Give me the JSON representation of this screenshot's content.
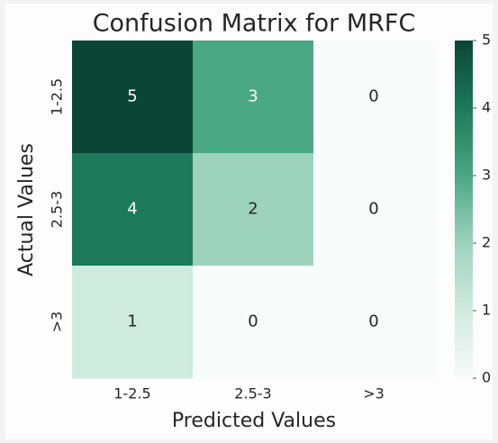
{
  "chart_data": {
    "type": "heatmap",
    "title": "Confusion Matrix for MRFC",
    "x_label": "Predicted Values",
    "y_label": "Actual Values",
    "x_categories": [
      "1-2.5",
      "2.5-3",
      ">3"
    ],
    "y_categories": [
      "1-2.5",
      "2.5-3",
      ">3"
    ],
    "values": [
      [
        5,
        3,
        0
      ],
      [
        4,
        2,
        0
      ],
      [
        1,
        0,
        0
      ]
    ],
    "zlim": [
      0,
      5
    ],
    "zticks": [
      0,
      1,
      2,
      3,
      4,
      5
    ],
    "colors": [
      "#f7fcfb",
      "#cfeadf",
      "#9dd3bd",
      "#4aa784",
      "#1c7a5a",
      "#0a4536"
    ]
  }
}
